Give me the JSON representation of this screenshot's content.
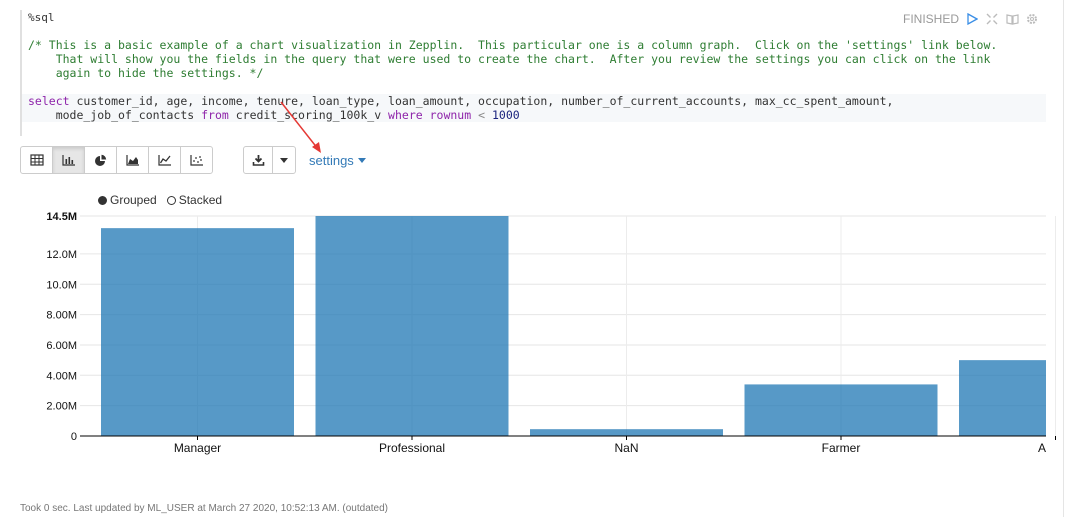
{
  "interpreter": "%sql",
  "status": "FINISHED",
  "code_lines": [
    {
      "parts": [
        {
          "t": "/* This is a basic example of a chart visualization in Zepplin.  This particular one is a column graph.  Click on the 'settings' link below.",
          "c": "cm"
        }
      ]
    },
    {
      "parts": [
        {
          "t": "    That will show you the fields in the query that were used to create the chart.  After you review the settings you can click on the link",
          "c": "cm"
        }
      ]
    },
    {
      "parts": [
        {
          "t": "    again to hide the settings. */",
          "c": "cm"
        }
      ]
    },
    {
      "parts": [
        {
          "t": "",
          "c": ""
        }
      ]
    },
    {
      "parts": [
        {
          "t": "select",
          "c": "kw"
        },
        {
          "t": " customer_id, age, income, tenure, loan_type, loan_amount, occupation, number_of_current_accounts, max_cc_spent_amount,",
          "c": ""
        }
      ]
    },
    {
      "parts": [
        {
          "t": "    mode_job_of_contacts ",
          "c": ""
        },
        {
          "t": "from",
          "c": "kw"
        },
        {
          "t": " credit_scoring_100k_v ",
          "c": ""
        },
        {
          "t": "where",
          "c": "kw"
        },
        {
          "t": " ",
          "c": ""
        },
        {
          "t": "rownum",
          "c": "kw"
        },
        {
          "t": " ",
          "c": ""
        },
        {
          "t": "<",
          "c": "op"
        },
        {
          "t": " ",
          "c": ""
        },
        {
          "t": "1000",
          "c": "num"
        }
      ]
    }
  ],
  "toolbar": {
    "buttons": [
      "table-icon",
      "bar-chart-icon",
      "pie-chart-icon",
      "area-chart-icon",
      "line-chart-icon",
      "scatter-chart-icon"
    ],
    "settings_label": "settings"
  },
  "chart_options": {
    "grouped": "Grouped",
    "stacked": "Stacked",
    "selected": "grouped"
  },
  "chart_data": {
    "type": "bar",
    "categories": [
      "Manager",
      "Professional",
      "NaN",
      "Farmer",
      "A"
    ],
    "values": [
      13700000,
      14500000,
      450000,
      3400000,
      5000000
    ],
    "ylim": [
      0,
      14500000
    ],
    "yticks": [
      0,
      2000000,
      4000000,
      6000000,
      8000000,
      10000000,
      12000000,
      14500000
    ],
    "ytick_labels": [
      "0",
      "2.00M",
      "4.00M",
      "6.00M",
      "8.00M",
      "10.0M",
      "12.0M",
      "14.5M"
    ],
    "color": "#1f77b4"
  },
  "footer": "Took 0 sec. Last updated by ML_USER at March 27 2020, 10:52:13 AM. (outdated)"
}
